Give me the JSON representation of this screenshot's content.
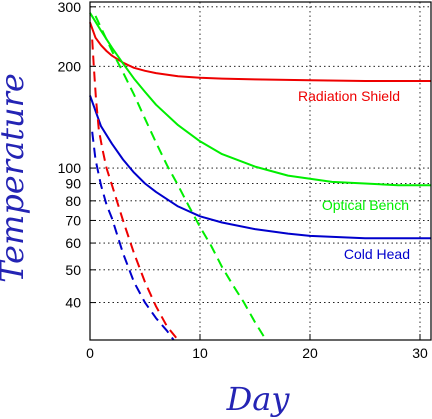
{
  "chart_data": {
    "type": "line",
    "xlabel": "Day",
    "ylabel": "Temperature",
    "xlim": [
      0,
      31
    ],
    "ylim": [
      31,
      310
    ],
    "yscale": "log",
    "xticks": [
      0,
      10,
      20,
      30
    ],
    "yticks": [
      40,
      50,
      60,
      70,
      80,
      90,
      100,
      200,
      300
    ],
    "grid": true,
    "series": [
      {
        "name": "Radiation Shield",
        "color": "#ee0000",
        "dashed": false,
        "x": [
          0,
          0.5,
          1,
          1.5,
          2,
          3,
          4,
          5,
          6,
          8,
          10,
          12,
          15,
          20,
          25,
          31
        ],
        "y": [
          270,
          243,
          231,
          222,
          215,
          205,
          198,
          194,
          191,
          187,
          185,
          184,
          183,
          182,
          181,
          181
        ]
      },
      {
        "name": "Optical Bench",
        "color": "#00ee00",
        "dashed": false,
        "x": [
          0,
          1,
          2,
          3,
          4,
          5,
          6,
          8,
          10,
          12,
          15,
          18,
          20,
          22,
          25,
          28,
          31
        ],
        "y": [
          288,
          255,
          227,
          204,
          184,
          168,
          154,
          134,
          120,
          110,
          101,
          95,
          93,
          91,
          90,
          89,
          89
        ]
      },
      {
        "name": "Cold Head",
        "color": "#0000cc",
        "dashed": false,
        "x": [
          0,
          1,
          2,
          3,
          4,
          5,
          6,
          8,
          10,
          12,
          15,
          18,
          20,
          25,
          31
        ],
        "y": [
          164,
          133,
          118,
          106,
          97,
          90,
          85,
          77,
          72,
          69,
          66,
          64,
          63,
          62,
          62
        ]
      },
      {
        "name": "Radiation Shield (dashed)",
        "color": "#ee0000",
        "dashed": true,
        "x": [
          0.2,
          0.35,
          0.55,
          0.8,
          1.1,
          1.5,
          2,
          3,
          4,
          5,
          6,
          7,
          8
        ],
        "y": [
          240,
          200,
          160,
          130,
          115,
          100,
          89,
          70,
          56,
          46,
          39,
          34,
          31
        ]
      },
      {
        "name": "Optical Bench (dashed)",
        "color": "#00ee00",
        "dashed": true,
        "x": [
          0.5,
          1,
          2,
          3,
          4,
          5,
          6,
          7,
          8,
          9,
          10,
          11,
          12,
          13,
          14,
          15,
          16
        ],
        "y": [
          282,
          260,
          222,
          192,
          165,
          140,
          119,
          102,
          89,
          77,
          67,
          59,
          51,
          45,
          40,
          35,
          31
        ]
      },
      {
        "name": "Cold Head (dashed)",
        "color": "#0000cc",
        "dashed": true,
        "x": [
          0.2,
          0.5,
          1,
          1.5,
          2,
          3,
          4,
          5,
          6,
          7,
          7.6
        ],
        "y": [
          128,
          106,
          89,
          78,
          71,
          56,
          46,
          40,
          36,
          33,
          31
        ]
      }
    ],
    "labels": [
      {
        "text": "Radiation Shield",
        "color": "#ee0000"
      },
      {
        "text": "Optical Bench",
        "color": "#00ee00"
      },
      {
        "text": "Cold Head",
        "color": "#0000cc"
      }
    ]
  }
}
